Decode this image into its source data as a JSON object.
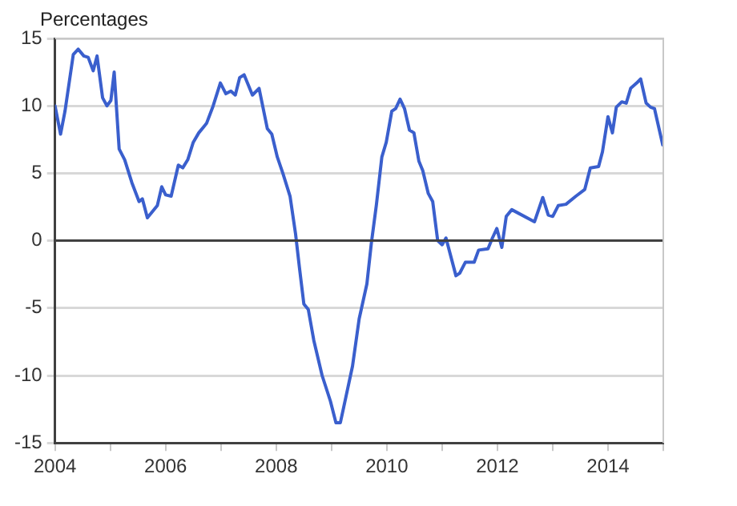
{
  "chart_data": {
    "type": "line",
    "ylabel": "Percentages",
    "color": "#3a5fcd",
    "x": [
      2004.0,
      2004.1,
      2004.18,
      2004.33,
      2004.42,
      2004.52,
      2004.6,
      2004.69,
      2004.76,
      2004.86,
      2004.94,
      2005.01,
      2005.07,
      2005.16,
      2005.26,
      2005.39,
      2005.52,
      2005.58,
      2005.67,
      2005.85,
      2005.93,
      2006.0,
      2006.1,
      2006.23,
      2006.31,
      2006.4,
      2006.5,
      2006.6,
      2006.74,
      2006.86,
      2006.99,
      2007.09,
      2007.18,
      2007.26,
      2007.34,
      2007.42,
      2007.57,
      2007.69,
      2007.84,
      2007.92,
      2008.02,
      2008.12,
      2008.25,
      2008.35,
      2008.42,
      2008.5,
      2008.58,
      2008.68,
      2008.83,
      2008.98,
      2009.08,
      2009.16,
      2009.26,
      2009.38,
      2009.5,
      2009.64,
      2009.72,
      2009.81,
      2009.91,
      2009.99,
      2010.09,
      2010.16,
      2010.24,
      2010.32,
      2010.41,
      2010.49,
      2010.58,
      2010.65,
      2010.75,
      2010.83,
      2010.92,
      2011.0,
      2011.07,
      2011.25,
      2011.32,
      2011.42,
      2011.58,
      2011.66,
      2011.83,
      2011.91,
      2011.99,
      2012.08,
      2012.16,
      2012.26,
      2012.67,
      2012.82,
      2012.92,
      2013.0,
      2013.1,
      2013.24,
      2013.42,
      2013.58,
      2013.68,
      2013.83,
      2013.9,
      2014.0,
      2014.08,
      2014.15,
      2014.25,
      2014.33,
      2014.41,
      2014.52,
      2014.59,
      2014.69,
      2014.77,
      2014.84,
      2014.99
    ],
    "values": [
      10.0,
      7.9,
      9.6,
      13.8,
      14.2,
      13.7,
      13.6,
      12.6,
      13.7,
      10.6,
      10.0,
      10.4,
      12.5,
      6.8,
      6.0,
      4.3,
      2.9,
      3.1,
      1.7,
      2.6,
      4.0,
      3.4,
      3.3,
      5.6,
      5.4,
      6.0,
      7.3,
      8.0,
      8.7,
      10.0,
      11.7,
      10.9,
      11.1,
      10.8,
      12.1,
      12.3,
      10.8,
      11.3,
      8.3,
      7.9,
      6.2,
      5.0,
      3.3,
      0.5,
      -2.0,
      -4.7,
      -5.1,
      -7.4,
      -10.0,
      -11.9,
      -13.5,
      -13.5,
      -11.6,
      -9.3,
      -5.8,
      -3.2,
      -0.2,
      2.6,
      6.2,
      7.3,
      9.6,
      9.8,
      10.5,
      9.8,
      8.2,
      8.0,
      5.9,
      5.2,
      3.5,
      2.9,
      0.0,
      -0.3,
      0.2,
      -2.6,
      -2.4,
      -1.6,
      -1.6,
      -0.7,
      -0.6,
      0.2,
      0.9,
      -0.5,
      1.8,
      2.3,
      1.4,
      3.2,
      1.9,
      1.8,
      2.6,
      2.7,
      3.3,
      3.8,
      5.4,
      5.5,
      6.6,
      9.2,
      8.0,
      9.9,
      10.3,
      10.2,
      11.3,
      11.7,
      12.0,
      10.2,
      9.9,
      9.8,
      7.1
    ],
    "xlim": [
      2004,
      2015
    ],
    "xticks": [
      2004,
      {
        "value": 2005,
        "label": null
      },
      2006,
      {
        "value": 2007,
        "label": null
      },
      2008,
      {
        "value": 2009,
        "label": null
      },
      2010,
      {
        "value": 2011,
        "label": null
      },
      2012,
      {
        "value": 2013,
        "label": null
      },
      2014,
      {
        "value": 2015,
        "label": null
      }
    ],
    "ylim": [
      -15,
      15
    ],
    "yticks": [
      -15,
      -10,
      -5,
      0,
      5,
      10,
      15
    ],
    "grid": "y",
    "legend": false,
    "marker": "none",
    "line_style": "solid",
    "ref_lines": [
      {
        "axis": "y",
        "value": 0,
        "color": "#404040"
      }
    ]
  }
}
